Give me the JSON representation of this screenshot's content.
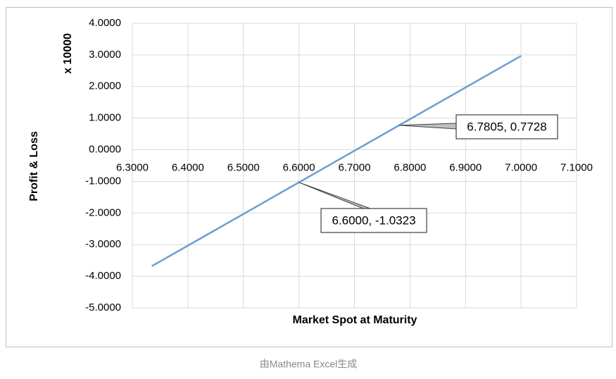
{
  "chart_data": {
    "type": "line",
    "y_title": "x 10000",
    "y_label": "Profit & Loss",
    "x_label": "Market Spot at Maturity",
    "x": [
      6.335,
      6.6,
      6.7805,
      7.0
    ],
    "series": [
      {
        "name": "P&L",
        "color": "#6a9fd0",
        "values": [
          -3.6823,
          -1.0323,
          0.7728,
          2.9677
        ]
      }
    ],
    "xlim": [
      6.3,
      7.1
    ],
    "xticks": [
      {
        "value": 6.3,
        "label": "6.3000"
      },
      {
        "value": 6.4,
        "label": "6.4000"
      },
      {
        "value": 6.5,
        "label": "6.5000"
      },
      {
        "value": 6.6,
        "label": "6.6000"
      },
      {
        "value": 6.7,
        "label": "6.7000"
      },
      {
        "value": 6.8,
        "label": "6.8000"
      },
      {
        "value": 6.9,
        "label": "6.9000"
      },
      {
        "value": 7.0,
        "label": "7.0000"
      },
      {
        "value": 7.1,
        "label": "7.1000"
      }
    ],
    "ylim": [
      -5,
      4
    ],
    "yticks": [
      {
        "value": 4,
        "label": "4.0000"
      },
      {
        "value": 3,
        "label": "3.0000"
      },
      {
        "value": 2,
        "label": "2.0000"
      },
      {
        "value": 1,
        "label": "1.0000"
      },
      {
        "value": 0,
        "label": "0.0000"
      },
      {
        "value": -1,
        "label": "-1.0000"
      },
      {
        "value": -2,
        "label": "-2.0000"
      },
      {
        "value": -3,
        "label": "-3.0000"
      },
      {
        "value": -4,
        "label": "-4.0000"
      },
      {
        "value": -5,
        "label": "-5.0000"
      }
    ],
    "grid": true,
    "annotations": [
      {
        "x": 6.7805,
        "y": 0.7728,
        "label": "6.7805, 0.7728"
      },
      {
        "x": 6.6,
        "y": -1.0323,
        "label": "6.6000, -1.0323"
      }
    ]
  },
  "caption": "由Mathema Excel生成"
}
